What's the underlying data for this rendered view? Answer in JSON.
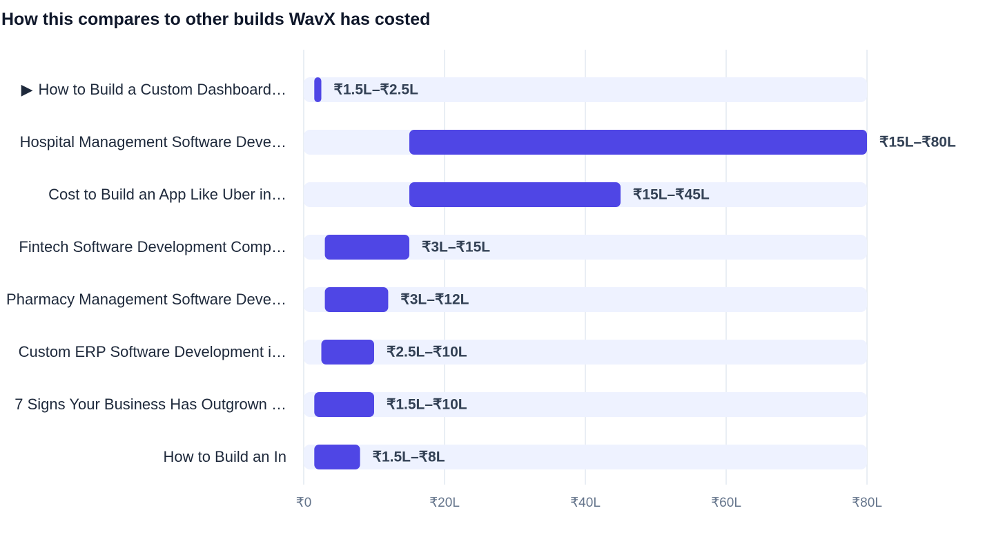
{
  "chart_data": {
    "type": "bar",
    "title": "How this compares to other builds WavX has costed",
    "xlabel": "",
    "ylabel": "",
    "xlim": [
      0,
      80
    ],
    "grid": true,
    "legend": "none",
    "colors": {
      "bar": "#4f46e5",
      "track": "#eef2ff",
      "grid": "#e2e8f0"
    },
    "x_ticks": [
      {
        "value": 0,
        "label": "₹0"
      },
      {
        "value": 20,
        "label": "₹20L"
      },
      {
        "value": 40,
        "label": "₹40L"
      },
      {
        "value": 60,
        "label": "₹60L"
      },
      {
        "value": 80,
        "label": "₹80L"
      }
    ],
    "rows": [
      {
        "label": "How to Build a Custom Dashboard…",
        "low": 1.5,
        "high": 2.5,
        "range_label": "₹1.5L–₹2.5L",
        "marker": "▶"
      },
      {
        "label": "Hospital Management Software Deve…",
        "low": 15,
        "high": 80,
        "range_label": "₹15L–₹80L"
      },
      {
        "label": "Cost to Build an App Like Uber in…",
        "low": 15,
        "high": 45,
        "range_label": "₹15L–₹45L"
      },
      {
        "label": "Fintech Software Development Comp…",
        "low": 3,
        "high": 15,
        "range_label": "₹3L–₹15L"
      },
      {
        "label": "Pharmacy Management Software Deve…",
        "low": 3,
        "high": 12,
        "range_label": "₹3L–₹12L"
      },
      {
        "label": "Custom ERP Software Development i…",
        "low": 2.5,
        "high": 10,
        "range_label": "₹2.5L–₹10L"
      },
      {
        "label": "Signs Your Business Has Outgrown …",
        "low": 1.5,
        "high": 10,
        "range_label": "₹1.5L–₹10L",
        "prefix": "7"
      },
      {
        "label": "How to Build an In",
        "low": 1.5,
        "high": 8,
        "range_label": "₹1.5L–₹8L"
      }
    ]
  }
}
